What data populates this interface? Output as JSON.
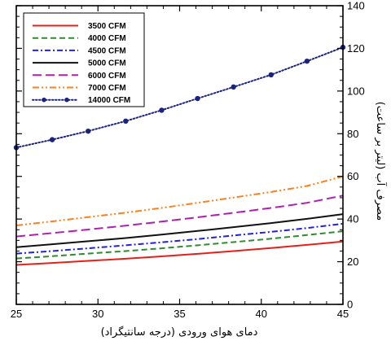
{
  "chart_data": {
    "type": "line",
    "title": "",
    "xlabel": "دمای هوای ورودی (درجه سانتیگراد)",
    "ylabel": "مصرف آب (لیتر بر ساعت)",
    "xlim": [
      25,
      45
    ],
    "ylim": [
      0,
      140
    ],
    "x_ticks": [
      25,
      30,
      35,
      40,
      45
    ],
    "y_ticks": [
      0,
      20,
      40,
      60,
      80,
      100,
      120,
      140
    ],
    "y_axis_side": "right",
    "grid": false,
    "legend_position": "top-left",
    "x": [
      25,
      27.2,
      29.4,
      31.7,
      33.9,
      36.1,
      38.3,
      40.6,
      42.8,
      45
    ],
    "series": [
      {
        "name": "3500 CFM",
        "color": "#e32119",
        "dash": "solid",
        "values": [
          18.5,
          19.4,
          20.4,
          21.4,
          22.5,
          23.7,
          25.0,
          26.4,
          27.9,
          29.5
        ]
      },
      {
        "name": "4000 CFM",
        "color": "#2e8b2e",
        "dash": "dashed",
        "values": [
          21.5,
          22.6,
          23.8,
          25.0,
          26.3,
          27.7,
          29.2,
          30.8,
          32.5,
          34.3
        ]
      },
      {
        "name": "4500 CFM",
        "color": "#2222dd",
        "dash": "dashdot",
        "values": [
          23.8,
          25.0,
          26.3,
          27.7,
          29.1,
          30.6,
          32.3,
          34.0,
          35.8,
          37.8
        ]
      },
      {
        "name": "5000 CFM",
        "color": "#111111",
        "dash": "solid",
        "values": [
          26.8,
          28.2,
          29.6,
          31.1,
          32.7,
          34.4,
          36.2,
          38.1,
          40.1,
          42.3
        ]
      },
      {
        "name": "6000 CFM",
        "color": "#b020b0",
        "dash": "longdash",
        "values": [
          31.8,
          33.4,
          35.1,
          36.9,
          38.8,
          40.8,
          42.9,
          45.2,
          47.6,
          51.0
        ]
      },
      {
        "name": "7000 CFM",
        "color": "#ff7f1a",
        "dash": "dashdotdot",
        "values": [
          37.0,
          38.9,
          40.9,
          43.0,
          45.2,
          47.6,
          50.1,
          52.7,
          55.5,
          60.0
        ]
      },
      {
        "name": "14000 CFM",
        "color": "#1a237e",
        "dash": "dotted",
        "markers": true,
        "values": [
          73.5,
          77.2,
          81.2,
          85.9,
          91.0,
          96.5,
          101.9,
          107.6,
          114.0,
          120.5
        ]
      }
    ]
  }
}
